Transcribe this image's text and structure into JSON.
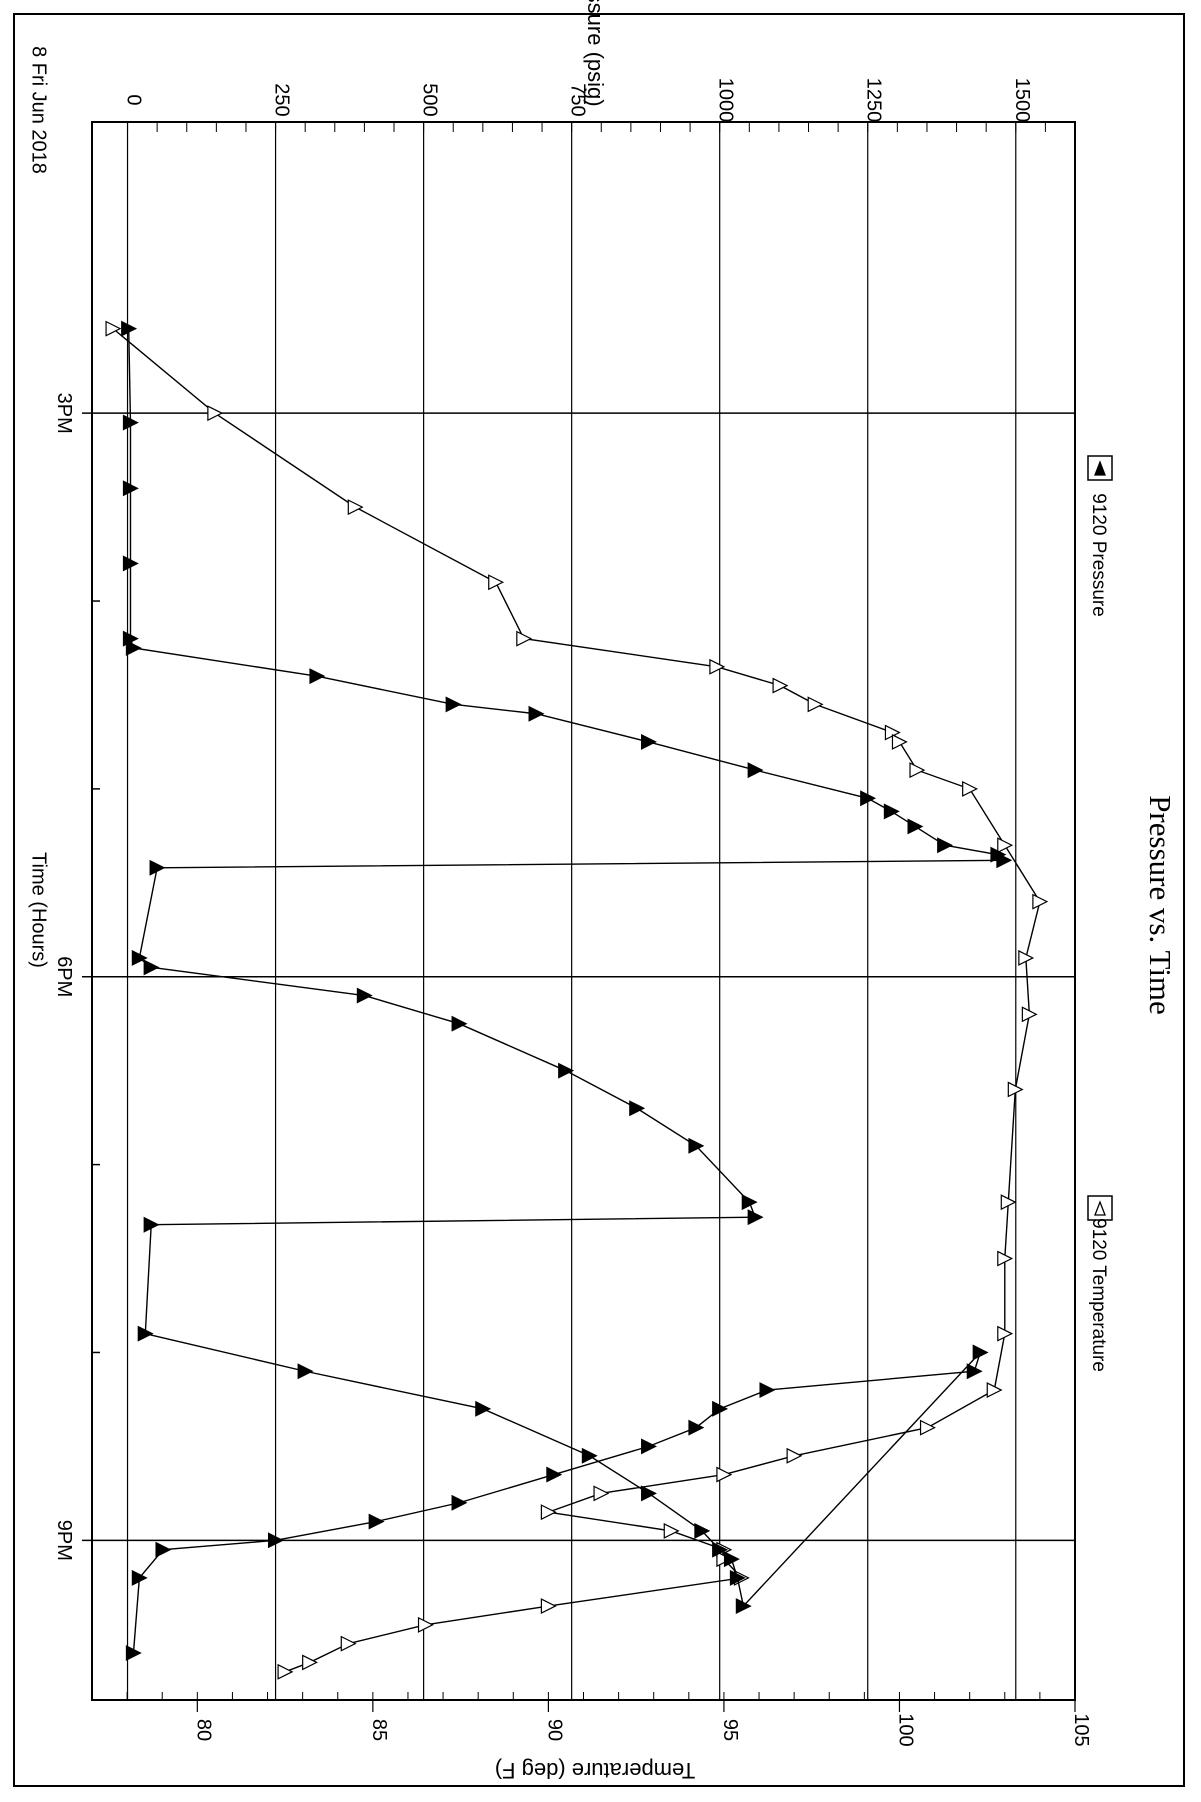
{
  "chart_data": {
    "type": "line",
    "title": "Pressure vs. Time",
    "date_label": "8 Fri Jun 2018",
    "x_axis": {
      "label": "Time (Hours)",
      "range_hours": [
        13.45,
        21.85
      ],
      "major_ticks": [
        {
          "hour": 15,
          "label": "3PM"
        },
        {
          "hour": 18,
          "label": "6PM"
        },
        {
          "hour": 21,
          "label": "9PM"
        }
      ],
      "minor_ticks": [
        16,
        17,
        19,
        20
      ]
    },
    "y_axis_left": {
      "label": "Pressure (psig)",
      "range": [
        -60,
        1600
      ],
      "ticks": [
        0,
        250,
        500,
        750,
        1000,
        1250,
        1500
      ],
      "tick_labels": [
        "0",
        "250",
        "500",
        "750",
        "1000",
        "1250",
        "1500"
      ]
    },
    "y_axis_right": {
      "label": "Temperature (deg F)",
      "range": [
        77.0,
        105.0
      ],
      "ticks": [
        80,
        85,
        90,
        95,
        100,
        105
      ],
      "tick_labels": [
        "80",
        "85",
        "90",
        "95",
        "100",
        "105"
      ]
    },
    "grid": true,
    "legend_position": "right",
    "series": [
      {
        "name": "9120 Pressure",
        "marker": "filled-triangle",
        "axis": "left",
        "points": [
          [
            14.55,
            2
          ],
          [
            15.05,
            5
          ],
          [
            15.4,
            5
          ],
          [
            15.8,
            5
          ],
          [
            16.2,
            5
          ],
          [
            16.25,
            10
          ],
          [
            16.4,
            320
          ],
          [
            16.55,
            550
          ],
          [
            16.6,
            690
          ],
          [
            16.75,
            880
          ],
          [
            16.9,
            1060
          ],
          [
            17.05,
            1250
          ],
          [
            17.12,
            1290
          ],
          [
            17.2,
            1330
          ],
          [
            17.3,
            1380
          ],
          [
            17.35,
            1470
          ],
          [
            17.38,
            1480
          ],
          [
            17.42,
            50
          ],
          [
            17.9,
            20
          ],
          [
            17.95,
            40
          ],
          [
            18.1,
            400
          ],
          [
            18.25,
            560
          ],
          [
            18.5,
            740
          ],
          [
            18.7,
            860
          ],
          [
            18.9,
            960
          ],
          [
            19.2,
            1050
          ],
          [
            19.28,
            1060
          ],
          [
            19.32,
            40
          ],
          [
            19.9,
            30
          ],
          [
            20.1,
            300
          ],
          [
            20.3,
            600
          ],
          [
            20.55,
            780
          ],
          [
            20.75,
            880
          ],
          [
            20.95,
            970
          ],
          [
            21.05,
            1000
          ],
          [
            21.1,
            1020
          ],
          [
            21.2,
            1030
          ],
          [
            21.35,
            1040
          ],
          [
            20.0,
            1440
          ],
          [
            20.1,
            1430
          ],
          [
            20.2,
            1080
          ],
          [
            20.3,
            1000
          ],
          [
            20.4,
            960
          ],
          [
            20.5,
            880
          ],
          [
            20.65,
            720
          ],
          [
            20.8,
            560
          ],
          [
            20.9,
            420
          ],
          [
            21.0,
            250
          ],
          [
            21.05,
            60
          ],
          [
            21.2,
            20
          ],
          [
            21.6,
            10
          ]
        ]
      },
      {
        "name": "9120 Temperature",
        "marker": "hollow-triangle",
        "axis": "right",
        "points": [
          [
            14.55,
            77.6
          ],
          [
            15.0,
            80.5
          ],
          [
            15.5,
            84.5
          ],
          [
            15.9,
            88.5
          ],
          [
            16.2,
            89.3
          ],
          [
            16.35,
            94.8
          ],
          [
            16.45,
            96.6
          ],
          [
            16.55,
            97.6
          ],
          [
            16.7,
            99.8
          ],
          [
            16.75,
            100.0
          ],
          [
            16.9,
            100.5
          ],
          [
            17.0,
            102.0
          ],
          [
            17.3,
            103.0
          ],
          [
            17.6,
            104.0
          ],
          [
            17.9,
            103.6
          ],
          [
            18.2,
            103.7
          ],
          [
            18.6,
            103.3
          ],
          [
            19.2,
            103.1
          ],
          [
            19.5,
            103.0
          ],
          [
            19.9,
            103.0
          ],
          [
            20.2,
            102.7
          ],
          [
            20.4,
            100.8
          ],
          [
            20.55,
            97.0
          ],
          [
            20.65,
            95.0
          ],
          [
            20.75,
            91.5
          ],
          [
            20.85,
            90.0
          ],
          [
            20.95,
            93.5
          ],
          [
            21.05,
            95.0
          ],
          [
            21.1,
            95.0
          ],
          [
            21.2,
            95.5
          ],
          [
            21.35,
            90.0
          ],
          [
            21.45,
            86.5
          ],
          [
            21.55,
            84.3
          ],
          [
            21.65,
            83.2
          ],
          [
            21.7,
            82.5
          ]
        ]
      }
    ]
  }
}
